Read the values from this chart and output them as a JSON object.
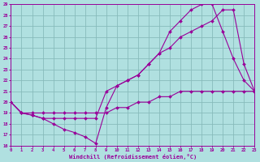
{
  "xlabel": "Windchill (Refroidissement éolien,°C)",
  "bg_color": "#b0e0e0",
  "line_color": "#990099",
  "grid_color": "#88bbbb",
  "xmin": 0,
  "xmax": 23,
  "ymin": 16,
  "ymax": 29,
  "line1_x": [
    0,
    1,
    2,
    3,
    4,
    5,
    6,
    7,
    8,
    9,
    10,
    11,
    12,
    13,
    14,
    15,
    16,
    17,
    18,
    19,
    20,
    21,
    22,
    23
  ],
  "line1_y": [
    20,
    19,
    18.8,
    18.5,
    18,
    17.5,
    17.2,
    16.8,
    16.2,
    19.5,
    21.5,
    22,
    22.5,
    23.5,
    24.5,
    26.5,
    27.5,
    28.5,
    29,
    29,
    26.5,
    24,
    22,
    21
  ],
  "line2_x": [
    0,
    1,
    2,
    3,
    3,
    4,
    5,
    6,
    7,
    8,
    9,
    10,
    11,
    12,
    13,
    14,
    15,
    16,
    17,
    18,
    19,
    20,
    21,
    22,
    23
  ],
  "line2_y": [
    20,
    19,
    18.8,
    18.5,
    18.5,
    18.5,
    18.5,
    18.5,
    18.5,
    18.5,
    21,
    21.5,
    22,
    22.5,
    23.5,
    24.5,
    25,
    26,
    26.5,
    27,
    27.5,
    28.5,
    28.5,
    23.5,
    21
  ],
  "line3_x": [
    0,
    1,
    2,
    3,
    4,
    5,
    6,
    7,
    8,
    9,
    10,
    11,
    12,
    13,
    14,
    15,
    16,
    17,
    18,
    19,
    20,
    21,
    22,
    23
  ],
  "line3_y": [
    20,
    19,
    19,
    19,
    19,
    19,
    19,
    19,
    19,
    19,
    19.5,
    19.5,
    20,
    20,
    20.5,
    20.5,
    21,
    21,
    21,
    21,
    21,
    21,
    21,
    21
  ]
}
